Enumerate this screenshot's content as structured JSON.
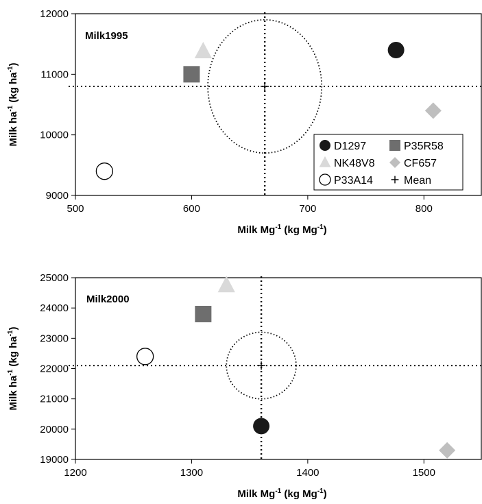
{
  "chart_data": [
    {
      "type": "scatter",
      "panel_label": "Milk1995",
      "xlabel": {
        "main": "Milk Mg",
        "sup": "-1",
        "paren": " (kg Mg",
        "sup2": "-1",
        "close": ")"
      },
      "ylabel": {
        "main": "Milk ha",
        "sup": "-1",
        "paren": " (kg ha",
        "sup2": "-1",
        "close": ")"
      },
      "xlim": [
        500,
        850
      ],
      "ylim": [
        9000,
        12000
      ],
      "xticks": [
        500,
        600,
        700,
        800
      ],
      "yticks": [
        9000,
        10000,
        11000,
        12000
      ],
      "series": [
        {
          "name": "D1297",
          "marker": "circle",
          "color": "#1a1a1a",
          "x": 776,
          "y": 11400
        },
        {
          "name": "P35R58",
          "marker": "square",
          "color": "#6e6e6e",
          "x": 600,
          "y": 11000
        },
        {
          "name": "NK48V8",
          "marker": "triangle",
          "color": "#d9d9d9",
          "x": 610,
          "y": 11380
        },
        {
          "name": "CF657",
          "marker": "diamond",
          "color": "#bfbfbf",
          "x": 808,
          "y": 10400
        },
        {
          "name": "P33A14",
          "marker": "open-circle",
          "color": "#ffffff",
          "x": 525,
          "y": 9400
        },
        {
          "name": "Mean",
          "marker": "plus",
          "color": "#000000",
          "x": 663,
          "y": 10800
        }
      ],
      "ellipse": {
        "cx": 663,
        "cy": 10800,
        "rx": 49,
        "ry": 1100
      },
      "legend": "lower-right"
    },
    {
      "type": "scatter",
      "panel_label": "Milk2000",
      "xlabel": {
        "main": "Milk Mg",
        "sup": "-1",
        "paren": " (kg Mg",
        "sup2": "-1",
        "close": ")"
      },
      "ylabel": {
        "main": "Milk ha",
        "sup": "-1",
        "paren": " (kg ha",
        "sup2": "-1",
        "close": ")"
      },
      "xlim": [
        1200,
        1550
      ],
      "ylim": [
        19000,
        25000
      ],
      "xticks": [
        1200,
        1300,
        1400,
        1500
      ],
      "yticks": [
        19000,
        20000,
        21000,
        22000,
        23000,
        24000,
        25000
      ],
      "series": [
        {
          "name": "D1297",
          "marker": "circle",
          "color": "#1a1a1a",
          "x": 1360,
          "y": 20100
        },
        {
          "name": "P35R58",
          "marker": "square",
          "color": "#6e6e6e",
          "x": 1310,
          "y": 23800
        },
        {
          "name": "NK48V8",
          "marker": "triangle",
          "color": "#d9d9d9",
          "x": 1330,
          "y": 24750
        },
        {
          "name": "CF657",
          "marker": "diamond",
          "color": "#bfbfbf",
          "x": 1520,
          "y": 19300
        },
        {
          "name": "P33A14",
          "marker": "open-circle",
          "color": "#ffffff",
          "x": 1260,
          "y": 22400
        },
        {
          "name": "Mean",
          "marker": "plus",
          "color": "#000000",
          "x": 1360,
          "y": 22100
        }
      ],
      "ellipse": {
        "cx": 1360,
        "cy": 22100,
        "rx": 30,
        "ry": 1100
      },
      "legend": "none"
    }
  ]
}
